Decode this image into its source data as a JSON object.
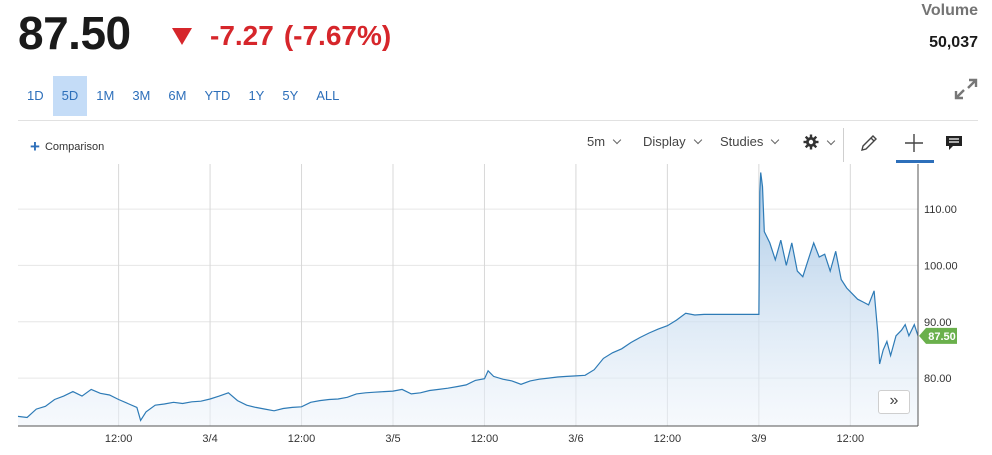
{
  "quote": {
    "price": "87.50",
    "change": "-7.27",
    "change_pct": "(-7.67%)",
    "direction_color": "#d6262b"
  },
  "volume": {
    "label": "Volume",
    "value": "50,037"
  },
  "ranges": [
    {
      "label": "1D",
      "active": false
    },
    {
      "label": "5D",
      "active": true
    },
    {
      "label": "1M",
      "active": false
    },
    {
      "label": "3M",
      "active": false
    },
    {
      "label": "6M",
      "active": false
    },
    {
      "label": "YTD",
      "active": false
    },
    {
      "label": "1Y",
      "active": false
    },
    {
      "label": "5Y",
      "active": false
    },
    {
      "label": "ALL",
      "active": false
    }
  ],
  "toolbar": {
    "comparison_label": "Comparison",
    "interval_label": "5m",
    "display_label": "Display",
    "studies_label": "Studies",
    "icons": [
      "gear-icon",
      "pencil-icon",
      "crosshair-icon",
      "comment-icon",
      "expand-icon",
      "fast-forward-icon"
    ]
  },
  "chart_data": {
    "type": "area",
    "line_color": "#2e7bb6",
    "fill_color": "#cfe0f0",
    "last_label_color": "#6ab04c",
    "last_value_label": "87.50",
    "y_ticks": [
      "110.00",
      "100.00",
      "90.00",
      "80.00"
    ],
    "y_tick_values": [
      110,
      100,
      90,
      80
    ],
    "ylim": [
      71.5,
      118
    ],
    "x_ticks": [
      "12:00",
      "3/4",
      "12:00",
      "3/5",
      "12:00",
      "3/6",
      "12:00",
      "3/9",
      "12:00"
    ],
    "x_tick_values": [
      0.5,
      1,
      1.5,
      2,
      2.5,
      3,
      3.5,
      4,
      4.5
    ],
    "xlim": [
      -0.05,
      4.87
    ],
    "grid": true,
    "series": [
      {
        "points": [
          [
            -0.05,
            73.2
          ],
          [
            0.0,
            73.0
          ],
          [
            0.05,
            74.5
          ],
          [
            0.1,
            75.0
          ],
          [
            0.15,
            76.2
          ],
          [
            0.2,
            76.8
          ],
          [
            0.25,
            77.6
          ],
          [
            0.3,
            76.8
          ],
          [
            0.35,
            78.0
          ],
          [
            0.4,
            77.3
          ],
          [
            0.45,
            77.0
          ],
          [
            0.5,
            76.2
          ],
          [
            0.55,
            75.5
          ],
          [
            0.6,
            74.8
          ],
          [
            0.62,
            72.5
          ],
          [
            0.65,
            74.0
          ],
          [
            0.7,
            75.2
          ],
          [
            0.75,
            75.4
          ],
          [
            0.8,
            75.7
          ],
          [
            0.85,
            75.5
          ],
          [
            0.9,
            75.8
          ],
          [
            0.95,
            75.9
          ],
          [
            1.0,
            76.3
          ],
          [
            1.05,
            76.8
          ],
          [
            1.1,
            77.4
          ],
          [
            1.15,
            76.0
          ],
          [
            1.2,
            75.2
          ],
          [
            1.25,
            74.8
          ],
          [
            1.3,
            74.5
          ],
          [
            1.35,
            74.2
          ],
          [
            1.4,
            74.6
          ],
          [
            1.45,
            74.8
          ],
          [
            1.5,
            74.9
          ],
          [
            1.55,
            75.7
          ],
          [
            1.6,
            76.0
          ],
          [
            1.65,
            76.2
          ],
          [
            1.7,
            76.3
          ],
          [
            1.75,
            76.6
          ],
          [
            1.8,
            77.2
          ],
          [
            1.85,
            77.4
          ],
          [
            1.9,
            77.5
          ],
          [
            1.95,
            77.6
          ],
          [
            2.0,
            77.7
          ],
          [
            2.05,
            78.0
          ],
          [
            2.1,
            77.2
          ],
          [
            2.15,
            77.4
          ],
          [
            2.2,
            77.8
          ],
          [
            2.25,
            78.0
          ],
          [
            2.3,
            78.2
          ],
          [
            2.35,
            78.5
          ],
          [
            2.4,
            78.8
          ],
          [
            2.45,
            79.6
          ],
          [
            2.5,
            79.9
          ],
          [
            2.52,
            81.3
          ],
          [
            2.55,
            80.3
          ],
          [
            2.6,
            79.8
          ],
          [
            2.65,
            79.5
          ],
          [
            2.7,
            78.9
          ],
          [
            2.75,
            79.5
          ],
          [
            2.8,
            79.8
          ],
          [
            2.85,
            80.0
          ],
          [
            2.9,
            80.2
          ],
          [
            2.95,
            80.3
          ],
          [
            3.0,
            80.4
          ],
          [
            3.05,
            80.5
          ],
          [
            3.1,
            81.5
          ],
          [
            3.15,
            83.5
          ],
          [
            3.2,
            84.5
          ],
          [
            3.25,
            85.2
          ],
          [
            3.3,
            86.3
          ],
          [
            3.35,
            87.2
          ],
          [
            3.4,
            88.0
          ],
          [
            3.45,
            88.7
          ],
          [
            3.5,
            89.3
          ],
          [
            3.55,
            90.3
          ],
          [
            3.6,
            91.5
          ],
          [
            3.65,
            91.2
          ],
          [
            3.7,
            91.3
          ],
          [
            3.75,
            91.3
          ],
          [
            3.85,
            91.3
          ],
          [
            3.95,
            91.3
          ],
          [
            4.0,
            91.3
          ],
          [
            4.005,
            113.0
          ],
          [
            4.01,
            116.5
          ],
          [
            4.02,
            114.0
          ],
          [
            4.03,
            106.0
          ],
          [
            4.06,
            104.0
          ],
          [
            4.09,
            101.0
          ],
          [
            4.12,
            104.5
          ],
          [
            4.15,
            100.0
          ],
          [
            4.18,
            104.0
          ],
          [
            4.21,
            99.0
          ],
          [
            4.24,
            98.0
          ],
          [
            4.27,
            101.0
          ],
          [
            4.3,
            104.0
          ],
          [
            4.33,
            101.5
          ],
          [
            4.36,
            102.0
          ],
          [
            4.39,
            99.0
          ],
          [
            4.42,
            102.5
          ],
          [
            4.45,
            97.5
          ],
          [
            4.48,
            96.0
          ],
          [
            4.51,
            95.0
          ],
          [
            4.54,
            94.0
          ],
          [
            4.57,
            93.5
          ],
          [
            4.6,
            93.0
          ],
          [
            4.63,
            95.5
          ],
          [
            4.65,
            88.0
          ],
          [
            4.66,
            82.5
          ],
          [
            4.68,
            85.0
          ],
          [
            4.7,
            86.5
          ],
          [
            4.72,
            84.0
          ],
          [
            4.75,
            87.5
          ],
          [
            4.78,
            88.5
          ],
          [
            4.8,
            89.5
          ],
          [
            4.82,
            87.5
          ],
          [
            4.85,
            89.5
          ],
          [
            4.87,
            87.5
          ]
        ]
      }
    ]
  }
}
